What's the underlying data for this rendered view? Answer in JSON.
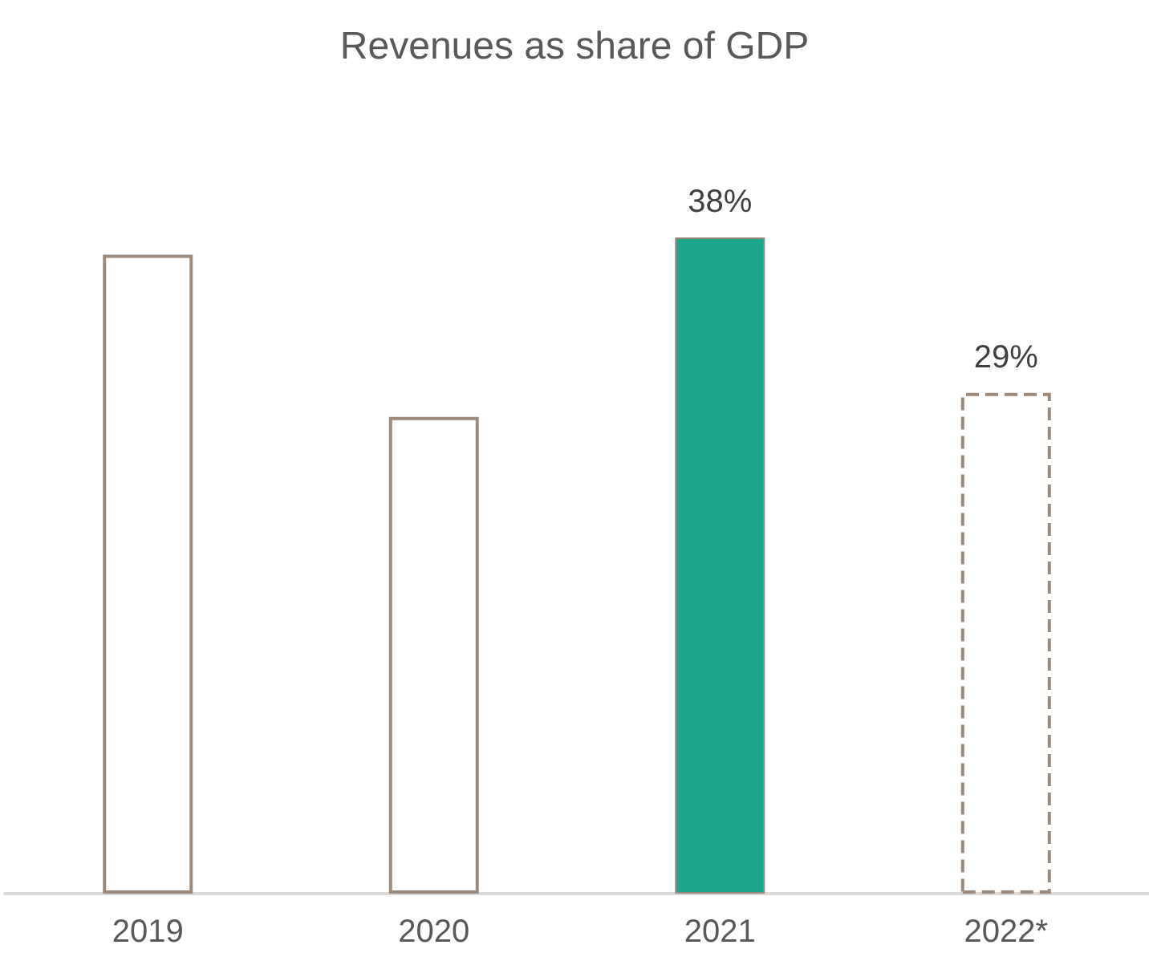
{
  "chart_data": {
    "type": "bar",
    "title": "Revenues as share of GDP",
    "categories": [
      "2019",
      "2020",
      "2021",
      "2022*"
    ],
    "series": [
      {
        "color": "#9b8a7c",
        "line_style": "solid",
        "values": [
          37,
          27.6,
          null,
          null
        ]
      },
      {
        "color": "#1ca68b",
        "values": [
          null,
          null,
          38,
          null
        ],
        "value_labels": [
          null,
          null,
          "38%",
          null
        ]
      },
      {
        "color": "#9b8a7c",
        "line_style": "dashed",
        "values": [
          null,
          null,
          null,
          29
        ],
        "value_labels": [
          null,
          null,
          null,
          "29%"
        ]
      }
    ]
  }
}
